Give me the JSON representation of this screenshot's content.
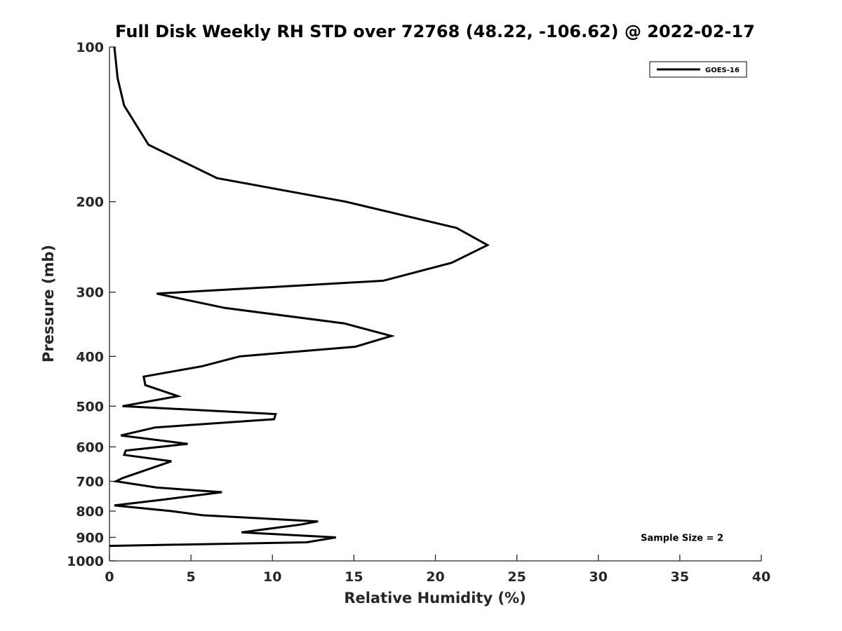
{
  "chart_data": {
    "type": "line",
    "title": "Full Disk Weekly RH STD over 72768 (48.22, -106.62) @ 2022-02-17",
    "xlabel": "Relative Humidity (%)",
    "ylabel": "Pressure (mb)",
    "xlim": [
      0,
      40
    ],
    "ylim": [
      100,
      1000
    ],
    "yscale": "log",
    "y_reversed": true,
    "grid": false,
    "legend_position": "top-right",
    "xticks": [
      0,
      5,
      10,
      15,
      20,
      25,
      30,
      35,
      40
    ],
    "xtick_labels": [
      "0",
      "5",
      "10",
      "15",
      "20",
      "25",
      "30",
      "35",
      "40"
    ],
    "yticks": [
      100,
      200,
      300,
      400,
      500,
      600,
      700,
      800,
      900,
      1000
    ],
    "ytick_labels": [
      "100",
      "200",
      "300",
      "400",
      "500",
      "600",
      "700",
      "800",
      "900",
      "1000"
    ],
    "series": [
      {
        "name": "GOES-16",
        "color": "#000000",
        "x": [
          0.3,
          0.5,
          0.9,
          2.4,
          6.6,
          14.5,
          21.3,
          23.2,
          21.0,
          16.8,
          2.9,
          7.1,
          14.4,
          17.3,
          15.1,
          8.0,
          5.7,
          2.1,
          2.2,
          4.2,
          0.8,
          10.2,
          10.1,
          2.8,
          0.7,
          4.8,
          1.0,
          0.9,
          3.8,
          0.8,
          0.4,
          2.9,
          6.9,
          3.3,
          0.3,
          3.8,
          5.7,
          12.8,
          11.7,
          8.1,
          13.9,
          12.1,
          0.0
        ],
        "y": [
          100,
          115,
          130,
          155,
          180,
          200,
          225,
          243,
          263,
          285,
          302,
          322,
          345,
          365,
          383,
          400,
          418,
          438,
          455,
          478,
          500,
          518,
          530,
          550,
          570,
          592,
          610,
          622,
          640,
          690,
          700,
          720,
          735,
          760,
          780,
          800,
          815,
          838,
          850,
          880,
          900,
          920,
          935
        ]
      }
    ],
    "annotations": [
      {
        "text": "Sample Size = 2",
        "x": 32.6,
        "y": 900
      }
    ]
  }
}
